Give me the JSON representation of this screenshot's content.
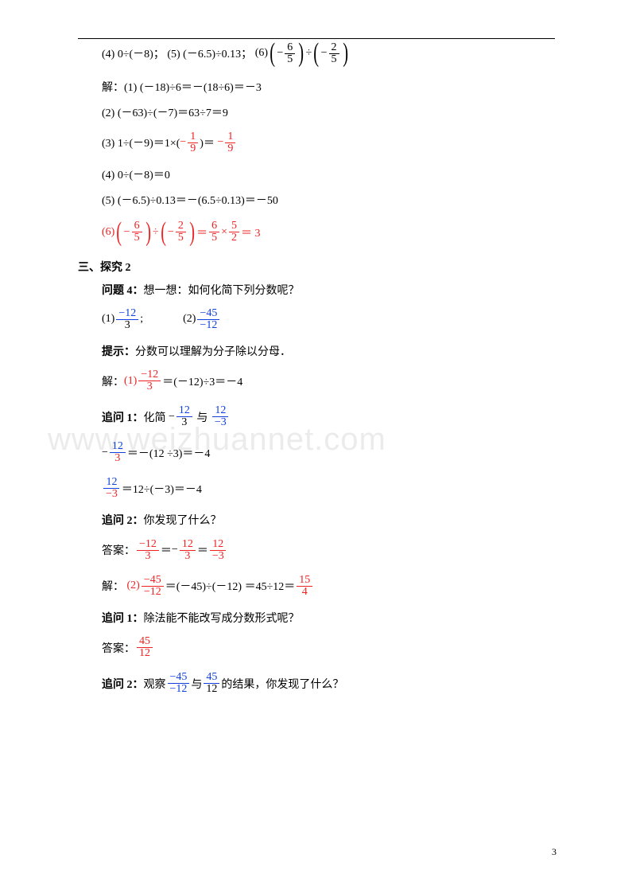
{
  "watermark": "www.weizhuannet.com",
  "pagenum": "3",
  "t1": {
    "p4": "(4) 0÷(－8)；",
    "p5": "(5) (－6.5)÷0.13；",
    "p6": "(6)"
  },
  "sol": "解：",
  "s1": "(1) (－18)÷6＝－(18÷6)＝－3",
  "s2": "(2) (－63)÷(－7)＝63÷7＝9",
  "s3a": "(3) 1÷(－9)＝1×(",
  "s3b": ")＝",
  "s4": "(4) 0÷(－8)＝0",
  "s5": "(5) (－6.5)÷0.13＝－(6.5÷0.13)＝－50",
  "s6a": "(6)",
  "s6b": "÷",
  "s6c": "＝",
  "s6d": "×",
  "s6e": "＝ 3",
  "sec": "三、探究 2",
  "q4": "问题 4：",
  "q4t": "想一想：如何化简下列分数呢？",
  "f12": "−12",
  "f3": "3",
  "f45": "−45",
  "fn12": "−12",
  "semi": ";",
  "tip": "提示：",
  "tipT": "分数可以理解为分子除以分母．",
  "sol2a": "＝(－12)÷3＝－4",
  "zw1": "追问 1：",
  "zw1t": "化简",
  "yu": "与",
  "c1": "＝－(12 ÷3)＝－4",
  "c2": "＝12÷(－3)＝－4",
  "zw2": "追问 2：",
  "zw2t": "你发现了什么？",
  "ans": "答案：",
  "p2a": "＝(－45)÷(－12) ＝45÷12＝",
  "zw1b": "除法能不能改写成分数形式呢？",
  "zw2b": "观察",
  "zw2c": "的结果，你发现了什么？",
  "n": {
    "1": "1",
    "2": "2",
    "3": "3",
    "5": "5",
    "6": "6",
    "9": "9",
    "12": "12",
    "15": "15",
    "45": "45"
  },
  "neg": "−",
  "p1": "(1)",
  "p2": "(2)"
}
